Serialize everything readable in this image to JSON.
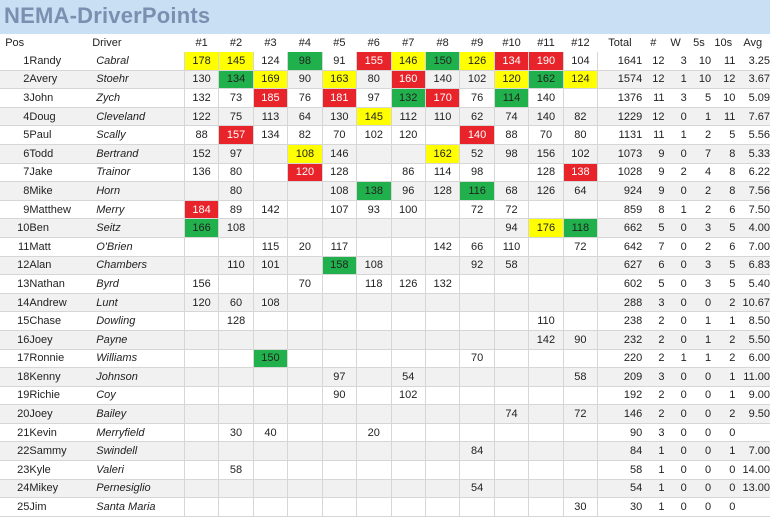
{
  "title": "NEMA-DriverPoints",
  "headers": {
    "pos": "Pos",
    "driver": "Driver",
    "races": [
      "#1",
      "#2",
      "#3",
      "#4",
      "#5",
      "#6",
      "#7",
      "#8",
      "#9",
      "#10",
      "#11",
      "#12"
    ],
    "total": "Total",
    "num": "#",
    "w": "W",
    "fives": "5s",
    "tens": "10s",
    "avg": "Avg"
  },
  "colors": {
    "yellow": "#ffff00",
    "green": "#21b14c",
    "red": "#e8232a"
  },
  "rows": [
    {
      "pos": "1",
      "first": "Randy",
      "last": "Cabral",
      "races": [
        "178",
        "145",
        "124",
        "98",
        "91",
        "155",
        "146",
        "150",
        "126",
        "134",
        "190",
        "104"
      ],
      "hl": [
        "y",
        "y",
        "",
        "g",
        "",
        "r",
        "y",
        "g",
        "y",
        "r",
        "r",
        ""
      ],
      "total": "1641",
      "num": "12",
      "w": "3",
      "fives": "10",
      "tens": "11",
      "avg": "3.25"
    },
    {
      "pos": "2",
      "first": "Avery",
      "last": "Stoehr",
      "races": [
        "130",
        "134",
        "169",
        "90",
        "163",
        "80",
        "160",
        "140",
        "102",
        "120",
        "162",
        "124"
      ],
      "hl": [
        "",
        "g",
        "y",
        "",
        "y",
        "",
        "r",
        "",
        "",
        "y",
        "g",
        "y"
      ],
      "total": "1574",
      "num": "12",
      "w": "1",
      "fives": "10",
      "tens": "12",
      "avg": "3.67"
    },
    {
      "pos": "3",
      "first": "John",
      "last": "Zych",
      "races": [
        "132",
        "73",
        "185",
        "76",
        "181",
        "97",
        "132",
        "170",
        "76",
        "114",
        "140",
        ""
      ],
      "hl": [
        "",
        "",
        "r",
        "",
        "r",
        "",
        "g",
        "r",
        "",
        "g",
        "",
        ""
      ],
      "total": "1376",
      "num": "11",
      "w": "3",
      "fives": "5",
      "tens": "10",
      "avg": "5.09"
    },
    {
      "pos": "4",
      "first": "Doug",
      "last": "Cleveland",
      "races": [
        "122",
        "75",
        "113",
        "64",
        "130",
        "145",
        "112",
        "110",
        "62",
        "74",
        "140",
        "82"
      ],
      "hl": [
        "",
        "",
        "",
        "",
        "",
        "y",
        "",
        "",
        "",
        "",
        "",
        ""
      ],
      "total": "1229",
      "num": "12",
      "w": "0",
      "fives": "1",
      "tens": "11",
      "avg": "7.67"
    },
    {
      "pos": "5",
      "first": "Paul",
      "last": "Scally",
      "races": [
        "88",
        "157",
        "134",
        "82",
        "70",
        "102",
        "120",
        "",
        "140",
        "88",
        "70",
        "80"
      ],
      "hl": [
        "",
        "r",
        "",
        "",
        "",
        "",
        "",
        "",
        "r",
        "",
        "",
        ""
      ],
      "total": "1131",
      "num": "11",
      "w": "1",
      "fives": "2",
      "tens": "5",
      "avg": "5.56"
    },
    {
      "pos": "6",
      "first": "Todd",
      "last": "Bertrand",
      "races": [
        "152",
        "97",
        "",
        "108",
        "146",
        "",
        "",
        "162",
        "52",
        "98",
        "156",
        "102"
      ],
      "hl": [
        "",
        "",
        "",
        "y",
        "",
        "",
        "",
        "y",
        "",
        "",
        "",
        ""
      ],
      "total": "1073",
      "num": "9",
      "w": "0",
      "fives": "7",
      "tens": "8",
      "avg": "5.33"
    },
    {
      "pos": "7",
      "first": "Jake",
      "last": "Trainor",
      "races": [
        "136",
        "80",
        "",
        "120",
        "128",
        "",
        "86",
        "114",
        "98",
        "",
        "128",
        "138"
      ],
      "hl": [
        "",
        "",
        "",
        "r",
        "",
        "",
        "",
        "",
        "",
        "",
        "",
        "r"
      ],
      "total": "1028",
      "num": "9",
      "w": "2",
      "fives": "4",
      "tens": "8",
      "avg": "6.22"
    },
    {
      "pos": "8",
      "first": "Mike",
      "last": "Horn",
      "races": [
        "",
        "80",
        "",
        "",
        "108",
        "138",
        "96",
        "128",
        "116",
        "68",
        "126",
        "64"
      ],
      "hl": [
        "",
        "",
        "",
        "",
        "",
        "g",
        "",
        "",
        "g",
        "",
        "",
        ""
      ],
      "total": "924",
      "num": "9",
      "w": "0",
      "fives": "2",
      "tens": "8",
      "avg": "7.56"
    },
    {
      "pos": "9",
      "first": "Matthew",
      "last": "Merry",
      "races": [
        "184",
        "89",
        "142",
        "",
        "107",
        "93",
        "100",
        "",
        "72",
        "72",
        "",
        ""
      ],
      "hl": [
        "r",
        "",
        "",
        "",
        "",
        "",
        "",
        "",
        "",
        "",
        "",
        ""
      ],
      "total": "859",
      "num": "8",
      "w": "1",
      "fives": "2",
      "tens": "6",
      "avg": "7.50"
    },
    {
      "pos": "10",
      "first": "Ben",
      "last": "Seitz",
      "races": [
        "166",
        "108",
        "",
        "",
        "",
        "",
        "",
        "",
        "",
        "94",
        "176",
        "118"
      ],
      "hl": [
        "g",
        "",
        "",
        "",
        "",
        "",
        "",
        "",
        "",
        "",
        "y",
        "g"
      ],
      "total": "662",
      "num": "5",
      "w": "0",
      "fives": "3",
      "tens": "5",
      "avg": "4.00"
    },
    {
      "pos": "11",
      "first": "Matt",
      "last": "O'Brien",
      "races": [
        "",
        "",
        "115",
        "20",
        "117",
        "",
        "",
        "142",
        "66",
        "110",
        "",
        "72"
      ],
      "hl": [
        "",
        "",
        "",
        "",
        "",
        "",
        "",
        "",
        "",
        "",
        "",
        ""
      ],
      "total": "642",
      "num": "7",
      "w": "0",
      "fives": "2",
      "tens": "6",
      "avg": "7.00"
    },
    {
      "pos": "12",
      "first": "Alan",
      "last": "Chambers",
      "races": [
        "",
        "110",
        "101",
        "",
        "158",
        "108",
        "",
        "",
        "92",
        "58",
        "",
        ""
      ],
      "hl": [
        "",
        "",
        "",
        "",
        "g",
        "",
        "",
        "",
        "",
        "",
        "",
        ""
      ],
      "total": "627",
      "num": "6",
      "w": "0",
      "fives": "3",
      "tens": "5",
      "avg": "6.83"
    },
    {
      "pos": "13",
      "first": "Nathan",
      "last": "Byrd",
      "races": [
        "156",
        "",
        "",
        "70",
        "",
        "118",
        "126",
        "132",
        "",
        "",
        "",
        ""
      ],
      "hl": [
        "",
        "",
        "",
        "",
        "",
        "",
        "",
        "",
        "",
        "",
        "",
        ""
      ],
      "total": "602",
      "num": "5",
      "w": "0",
      "fives": "3",
      "tens": "5",
      "avg": "5.40"
    },
    {
      "pos": "14",
      "first": "Andrew",
      "last": "Lunt",
      "races": [
        "120",
        "60",
        "108",
        "",
        "",
        "",
        "",
        "",
        "",
        "",
        "",
        ""
      ],
      "hl": [
        "",
        "",
        "",
        "",
        "",
        "",
        "",
        "",
        "",
        "",
        "",
        ""
      ],
      "total": "288",
      "num": "3",
      "w": "0",
      "fives": "0",
      "tens": "2",
      "avg": "10.67"
    },
    {
      "pos": "15",
      "first": "Chase",
      "last": "Dowling",
      "races": [
        "",
        "128",
        "",
        "",
        "",
        "",
        "",
        "",
        "",
        "",
        "110",
        ""
      ],
      "hl": [
        "",
        "",
        "",
        "",
        "",
        "",
        "",
        "",
        "",
        "",
        "",
        ""
      ],
      "total": "238",
      "num": "2",
      "w": "0",
      "fives": "1",
      "tens": "1",
      "avg": "8.50"
    },
    {
      "pos": "16",
      "first": "Joey",
      "last": "Payne",
      "races": [
        "",
        "",
        "",
        "",
        "",
        "",
        "",
        "",
        "",
        "",
        "142",
        "90"
      ],
      "hl": [
        "",
        "",
        "",
        "",
        "",
        "",
        "",
        "",
        "",
        "",
        "",
        ""
      ],
      "total": "232",
      "num": "2",
      "w": "0",
      "fives": "1",
      "tens": "2",
      "avg": "5.50"
    },
    {
      "pos": "17",
      "first": "Ronnie",
      "last": "Williams",
      "races": [
        "",
        "",
        "150",
        "",
        "",
        "",
        "",
        "",
        "70",
        "",
        "",
        ""
      ],
      "hl": [
        "",
        "",
        "g",
        "",
        "",
        "",
        "",
        "",
        "",
        "",
        "",
        ""
      ],
      "total": "220",
      "num": "2",
      "w": "1",
      "fives": "1",
      "tens": "2",
      "avg": "6.00"
    },
    {
      "pos": "18",
      "first": "Kenny",
      "last": "Johnson",
      "races": [
        "",
        "",
        "",
        "",
        "97",
        "",
        "54",
        "",
        "",
        "",
        "",
        "58"
      ],
      "hl": [
        "",
        "",
        "",
        "",
        "",
        "",
        "",
        "",
        "",
        "",
        "",
        ""
      ],
      "total": "209",
      "num": "3",
      "w": "0",
      "fives": "0",
      "tens": "1",
      "avg": "11.00"
    },
    {
      "pos": "19",
      "first": "Richie",
      "last": "Coy",
      "races": [
        "",
        "",
        "",
        "",
        "90",
        "",
        "102",
        "",
        "",
        "",
        "",
        ""
      ],
      "hl": [
        "",
        "",
        "",
        "",
        "",
        "",
        "",
        "",
        "",
        "",
        "",
        ""
      ],
      "total": "192",
      "num": "2",
      "w": "0",
      "fives": "0",
      "tens": "1",
      "avg": "9.00"
    },
    {
      "pos": "20",
      "first": "Joey",
      "last": "Bailey",
      "races": [
        "",
        "",
        "",
        "",
        "",
        "",
        "",
        "",
        "",
        "74",
        "",
        "72"
      ],
      "hl": [
        "",
        "",
        "",
        "",
        "",
        "",
        "",
        "",
        "",
        "",
        "",
        ""
      ],
      "total": "146",
      "num": "2",
      "w": "0",
      "fives": "0",
      "tens": "2",
      "avg": "9.50"
    },
    {
      "pos": "21",
      "first": "Kevin",
      "last": "Merryfield",
      "races": [
        "",
        "30",
        "40",
        "",
        "",
        "20",
        "",
        "",
        "",
        "",
        "",
        ""
      ],
      "hl": [
        "",
        "",
        "",
        "",
        "",
        "",
        "",
        "",
        "",
        "",
        "",
        ""
      ],
      "total": "90",
      "num": "3",
      "w": "0",
      "fives": "0",
      "tens": "0",
      "avg": ""
    },
    {
      "pos": "22",
      "first": "Sammy",
      "last": "Swindell",
      "races": [
        "",
        "",
        "",
        "",
        "",
        "",
        "",
        "",
        "84",
        "",
        "",
        ""
      ],
      "hl": [
        "",
        "",
        "",
        "",
        "",
        "",
        "",
        "",
        "",
        "",
        "",
        ""
      ],
      "total": "84",
      "num": "1",
      "w": "0",
      "fives": "0",
      "tens": "1",
      "avg": "7.00"
    },
    {
      "pos": "23",
      "first": "Kyle",
      "last": "Valeri",
      "races": [
        "",
        "58",
        "",
        "",
        "",
        "",
        "",
        "",
        "",
        "",
        "",
        ""
      ],
      "hl": [
        "",
        "",
        "",
        "",
        "",
        "",
        "",
        "",
        "",
        "",
        "",
        ""
      ],
      "total": "58",
      "num": "1",
      "w": "0",
      "fives": "0",
      "tens": "0",
      "avg": "14.00"
    },
    {
      "pos": "24",
      "first": "Mikey",
      "last": "Pernesiglio",
      "races": [
        "",
        "",
        "",
        "",
        "",
        "",
        "",
        "",
        "54",
        "",
        "",
        ""
      ],
      "hl": [
        "",
        "",
        "",
        "",
        "",
        "",
        "",
        "",
        "",
        "",
        "",
        ""
      ],
      "total": "54",
      "num": "1",
      "w": "0",
      "fives": "0",
      "tens": "0",
      "avg": "13.00"
    },
    {
      "pos": "25",
      "first": "Jim",
      "last": "Santa Maria",
      "races": [
        "",
        "",
        "",
        "",
        "",
        "",
        "",
        "",
        "",
        "",
        "",
        "30"
      ],
      "hl": [
        "",
        "",
        "",
        "",
        "",
        "",
        "",
        "",
        "",
        "",
        "",
        ""
      ],
      "total": "30",
      "num": "1",
      "w": "0",
      "fives": "0",
      "tens": "0",
      "avg": ""
    }
  ]
}
